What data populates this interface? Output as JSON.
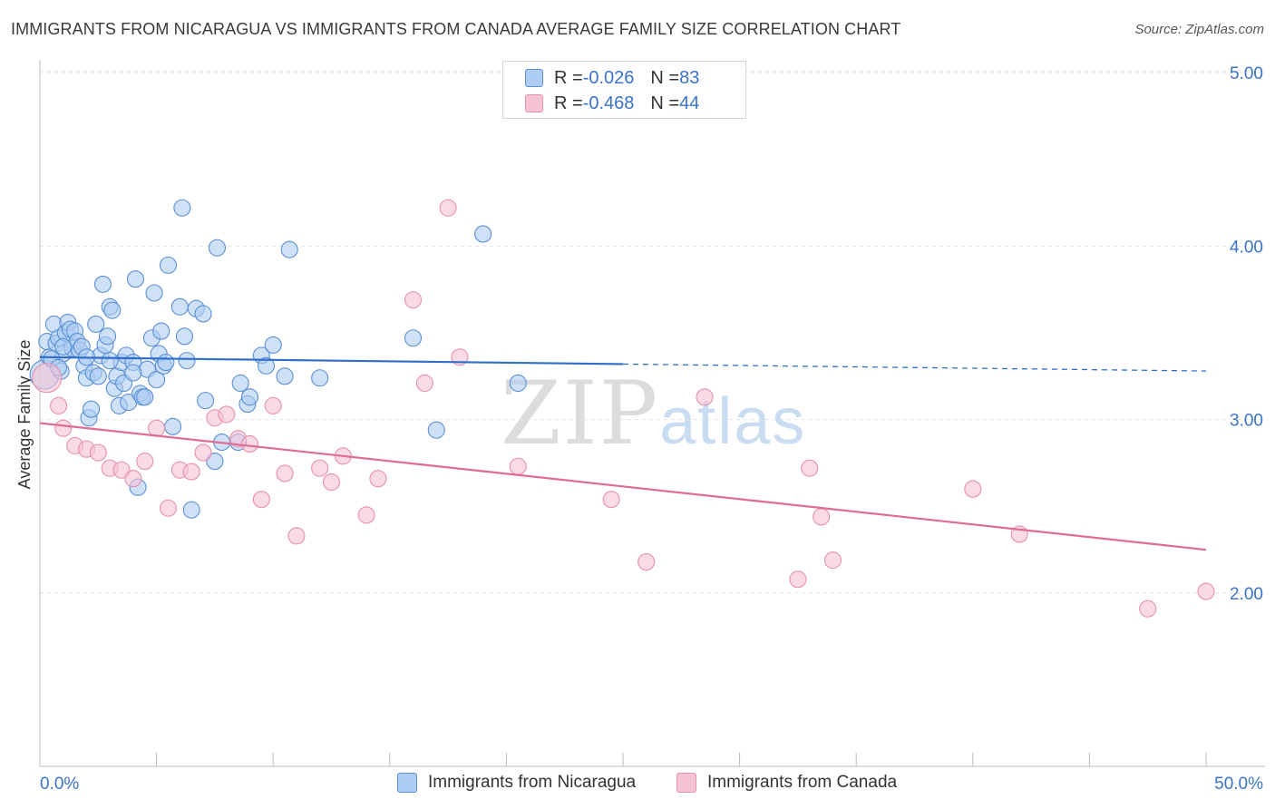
{
  "title": "IMMIGRANTS FROM NICARAGUA VS IMMIGRANTS FROM CANADA AVERAGE FAMILY SIZE CORRELATION CHART",
  "source": "Source: ZipAtlas.com",
  "watermark": {
    "zip": "ZIP",
    "atlas": "atlas"
  },
  "colors": {
    "blue_fill": "#aecdf2",
    "blue_stroke": "#5b8fd4",
    "blue_line": "#2f6fcb",
    "pink_fill": "#f6c3d3",
    "pink_stroke": "#e590ab",
    "pink_line": "#e06b95",
    "axis_text": "#3a73c9",
    "grid": "#e3e3e3"
  },
  "legend": {
    "rows": [
      {
        "r_label": "R = ",
        "r_value": "-0.026",
        "n_label": "N = ",
        "n_value": "83"
      },
      {
        "r_label": "R = ",
        "r_value": "-0.468",
        "n_label": "N = ",
        "n_value": "44"
      }
    ]
  },
  "bottom_legend": {
    "series1": "Immigrants from Nicaragua",
    "series2": "Immigrants from Canada"
  },
  "chart_data": {
    "type": "scatter",
    "title": "IMMIGRANTS FROM NICARAGUA VS IMMIGRANTS FROM CANADA AVERAGE FAMILY SIZE CORRELATION CHART",
    "xlabel": "",
    "ylabel": "Average Family Size",
    "xlim": [
      0,
      50
    ],
    "ylim": [
      1.0,
      5.1
    ],
    "x_tick_labels": {
      "min": "0.0%",
      "max": "50.0%"
    },
    "y_ticks": [
      2.0,
      3.0,
      4.0,
      5.0
    ],
    "y_tick_labels": [
      "2.00",
      "3.00",
      "4.00",
      "5.00"
    ],
    "grid": "horizontal dashed",
    "series": [
      {
        "name": "Immigrants from Nicaragua",
        "color": "#aecdf2",
        "trend": {
          "x0": 0,
          "y0": 3.36,
          "x1": 25,
          "y1": 3.32,
          "x_dash_end": 50,
          "y_dash_end": 3.28
        },
        "points": [
          [
            0.2,
            3.26
          ],
          [
            0.3,
            3.45
          ],
          [
            0.4,
            3.36
          ],
          [
            0.6,
            3.55
          ],
          [
            0.7,
            3.44
          ],
          [
            0.8,
            3.47
          ],
          [
            0.9,
            3.28
          ],
          [
            1.0,
            3.38
          ],
          [
            1.1,
            3.5
          ],
          [
            1.2,
            3.56
          ],
          [
            1.3,
            3.52
          ],
          [
            1.4,
            3.41
          ],
          [
            1.5,
            3.51
          ],
          [
            1.6,
            3.45
          ],
          [
            1.7,
            3.4
          ],
          [
            1.8,
            3.42
          ],
          [
            1.9,
            3.31
          ],
          [
            2.0,
            3.24
          ],
          [
            2.1,
            3.01
          ],
          [
            2.2,
            3.06
          ],
          [
            2.3,
            3.27
          ],
          [
            2.4,
            3.55
          ],
          [
            2.5,
            3.25
          ],
          [
            2.6,
            3.37
          ],
          [
            2.7,
            3.78
          ],
          [
            2.8,
            3.43
          ],
          [
            2.9,
            3.48
          ],
          [
            3.0,
            3.65
          ],
          [
            3.1,
            3.63
          ],
          [
            3.2,
            3.18
          ],
          [
            3.3,
            3.25
          ],
          [
            3.4,
            3.08
          ],
          [
            3.5,
            3.33
          ],
          [
            3.6,
            3.21
          ],
          [
            3.7,
            3.37
          ],
          [
            3.8,
            3.1
          ],
          [
            4.0,
            3.33
          ],
          [
            4.1,
            3.81
          ],
          [
            4.2,
            2.61
          ],
          [
            4.3,
            3.15
          ],
          [
            4.4,
            3.13
          ],
          [
            4.5,
            3.13
          ],
          [
            4.6,
            3.29
          ],
          [
            4.8,
            3.47
          ],
          [
            4.9,
            3.73
          ],
          [
            5.0,
            3.23
          ],
          [
            5.1,
            3.38
          ],
          [
            5.2,
            3.51
          ],
          [
            5.3,
            3.31
          ],
          [
            5.4,
            3.33
          ],
          [
            5.5,
            3.89
          ],
          [
            5.7,
            2.96
          ],
          [
            6.0,
            3.65
          ],
          [
            6.1,
            4.22
          ],
          [
            6.2,
            3.48
          ],
          [
            6.3,
            3.34
          ],
          [
            6.5,
            2.48
          ],
          [
            6.7,
            3.64
          ],
          [
            7.0,
            3.61
          ],
          [
            7.1,
            3.11
          ],
          [
            7.5,
            2.76
          ],
          [
            7.6,
            3.99
          ],
          [
            7.8,
            2.87
          ],
          [
            8.5,
            2.87
          ],
          [
            8.6,
            3.21
          ],
          [
            8.9,
            3.09
          ],
          [
            9.0,
            3.13
          ],
          [
            9.5,
            3.37
          ],
          [
            9.7,
            3.31
          ],
          [
            10.0,
            3.43
          ],
          [
            10.5,
            3.25
          ],
          [
            10.7,
            3.98
          ],
          [
            12.0,
            3.24
          ],
          [
            16.0,
            3.47
          ],
          [
            17.0,
            2.94
          ],
          [
            19.0,
            4.07
          ],
          [
            20.5,
            3.21
          ],
          [
            0.5,
            3.35
          ],
          [
            1.0,
            3.42
          ],
          [
            2.0,
            3.36
          ],
          [
            3.0,
            3.34
          ],
          [
            4.0,
            3.27
          ],
          [
            0.8,
            3.3
          ]
        ]
      },
      {
        "name": "Immigrants from Canada",
        "color": "#f6c3d3",
        "trend": {
          "x0": 0,
          "y0": 2.98,
          "x1": 50,
          "y1": 2.25
        },
        "points": [
          [
            0.3,
            3.24
          ],
          [
            0.8,
            3.08
          ],
          [
            1.0,
            2.95
          ],
          [
            1.5,
            2.85
          ],
          [
            2.0,
            2.83
          ],
          [
            2.5,
            2.81
          ],
          [
            3.0,
            2.72
          ],
          [
            3.5,
            2.71
          ],
          [
            4.0,
            2.66
          ],
          [
            4.5,
            2.76
          ],
          [
            5.0,
            2.95
          ],
          [
            5.5,
            2.49
          ],
          [
            6.0,
            2.71
          ],
          [
            6.5,
            2.7
          ],
          [
            7.0,
            2.81
          ],
          [
            7.5,
            3.01
          ],
          [
            8.0,
            3.03
          ],
          [
            8.5,
            2.89
          ],
          [
            9.0,
            2.86
          ],
          [
            9.5,
            2.54
          ],
          [
            10.0,
            3.08
          ],
          [
            10.5,
            2.69
          ],
          [
            11.0,
            2.33
          ],
          [
            12.0,
            2.72
          ],
          [
            12.5,
            2.64
          ],
          [
            13.0,
            2.79
          ],
          [
            14.0,
            2.45
          ],
          [
            14.5,
            2.66
          ],
          [
            16.0,
            3.69
          ],
          [
            16.5,
            3.21
          ],
          [
            17.5,
            4.22
          ],
          [
            18.0,
            3.36
          ],
          [
            20.5,
            2.73
          ],
          [
            24.5,
            2.54
          ],
          [
            26.0,
            2.18
          ],
          [
            28.5,
            3.13
          ],
          [
            32.5,
            2.08
          ],
          [
            33.0,
            2.72
          ],
          [
            33.5,
            2.44
          ],
          [
            34.0,
            2.19
          ],
          [
            40.0,
            2.6
          ],
          [
            42.0,
            2.34
          ],
          [
            47.5,
            1.91
          ],
          [
            50.0,
            2.01
          ]
        ]
      }
    ]
  }
}
